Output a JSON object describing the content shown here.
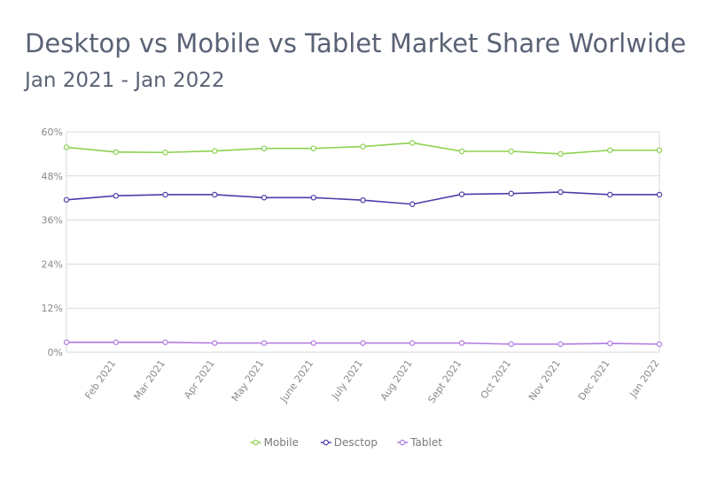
{
  "header": {
    "title": "Desktop vs Mobile vs Tablet Market Share Worlwide",
    "subtitle": "Jan 2021 - Jan 2022"
  },
  "colors": {
    "title": "#5a6275",
    "grid": "#d9d9d9",
    "axis_text": "#8a8a8a"
  },
  "chart_data": {
    "type": "line",
    "categories": [
      "",
      "Feb 2021",
      "Mar 2021",
      "Apr 2021",
      "May 2021",
      "June 2021",
      "July 2021",
      "Aug 2021",
      "Sept 2021",
      "Oct 2021",
      "Nov 2021",
      "Dec 2021",
      "Jan 2022"
    ],
    "series": [
      {
        "name": "Mobile",
        "color": "#8bd14f",
        "values": [
          55.8,
          54.5,
          54.4,
          54.8,
          55.5,
          55.5,
          56.0,
          57.0,
          54.7,
          54.7,
          54.0,
          55.0,
          55.0
        ]
      },
      {
        "name": "Desctop",
        "color": "#4a3fa8",
        "values": [
          41.5,
          42.6,
          42.9,
          42.9,
          42.1,
          42.1,
          41.4,
          40.3,
          43.0,
          43.2,
          43.6,
          42.9,
          42.9
        ]
      },
      {
        "name": "Tablet",
        "color": "#b07be0",
        "values": [
          2.7,
          2.7,
          2.7,
          2.5,
          2.5,
          2.5,
          2.5,
          2.5,
          2.5,
          2.2,
          2.2,
          2.4,
          2.2
        ]
      }
    ],
    "y_ticks": [
      "0%",
      "12%",
      "24%",
      "36%",
      "48%",
      "60%"
    ],
    "ylim": [
      0,
      60
    ],
    "grid": true,
    "legend_position": "bottom"
  }
}
